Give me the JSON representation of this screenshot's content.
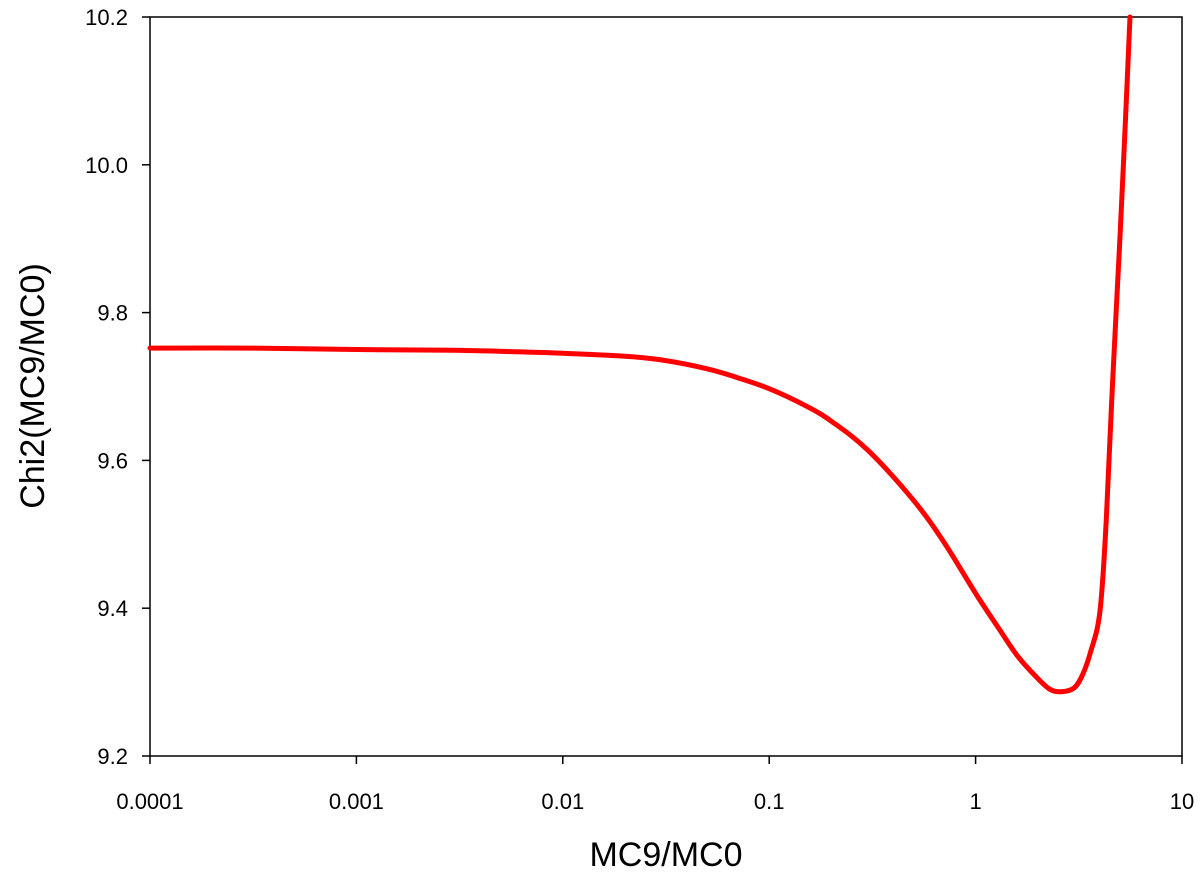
{
  "chart_data": {
    "type": "line",
    "title": "",
    "xlabel": "MC9/MC0",
    "ylabel": "Chi2(MC9/MC0)",
    "xscale": "log",
    "xlim": [
      0.0001,
      10
    ],
    "ylim": [
      9.2,
      10.2
    ],
    "grid": false,
    "legend": "none",
    "x_ticks": [
      {
        "value": 0.0001,
        "label": "0.0001"
      },
      {
        "value": 0.001,
        "label": "0.001"
      },
      {
        "value": 0.01,
        "label": "0.01"
      },
      {
        "value": 0.1,
        "label": "0.1"
      },
      {
        "value": 1,
        "label": "1"
      },
      {
        "value": 10,
        "label": "10"
      }
    ],
    "y_ticks": [
      {
        "value": 9.2,
        "label": "9.2"
      },
      {
        "value": 9.4,
        "label": "9.4"
      },
      {
        "value": 9.6,
        "label": "9.6"
      },
      {
        "value": 9.8,
        "label": "9.8"
      },
      {
        "value": 10.0,
        "label": "10.0"
      },
      {
        "value": 10.2,
        "label": "10.2"
      }
    ],
    "series": [
      {
        "color": "#ff0000",
        "points": [
          [
            0.0001,
            9.752
          ],
          [
            0.0003,
            9.752
          ],
          [
            0.001,
            9.75
          ],
          [
            0.003,
            9.749
          ],
          [
            0.006,
            9.747
          ],
          [
            0.01,
            9.745
          ],
          [
            0.02,
            9.741
          ],
          [
            0.03,
            9.736
          ],
          [
            0.05,
            9.724
          ],
          [
            0.07,
            9.712
          ],
          [
            0.1,
            9.697
          ],
          [
            0.15,
            9.674
          ],
          [
            0.2,
            9.653
          ],
          [
            0.3,
            9.614
          ],
          [
            0.5,
            9.546
          ],
          [
            0.7,
            9.49
          ],
          [
            1.0,
            9.42
          ],
          [
            1.3,
            9.372
          ],
          [
            1.6,
            9.335
          ],
          [
            2.0,
            9.305
          ],
          [
            2.3,
            9.29
          ],
          [
            2.6,
            9.287
          ],
          [
            3.0,
            9.292
          ],
          [
            3.3,
            9.31
          ],
          [
            3.6,
            9.34
          ],
          [
            4.0,
            9.395
          ],
          [
            4.3,
            9.52
          ],
          [
            4.6,
            9.7
          ],
          [
            5.0,
            9.9
          ],
          [
            5.3,
            10.05
          ],
          [
            5.6,
            10.2
          ]
        ]
      }
    ]
  }
}
